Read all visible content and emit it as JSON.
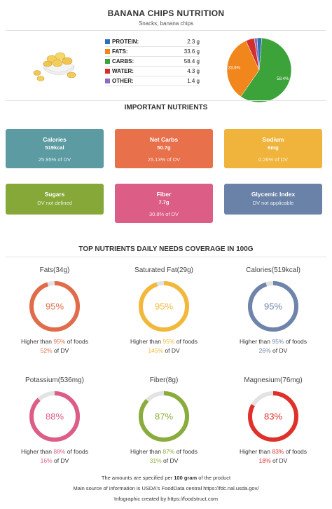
{
  "header": {
    "title": "BANANA CHIPS NUTRITION",
    "subtitle": "Snacks, banana chips"
  },
  "macros": [
    {
      "label": "PROTEIN:",
      "value": "2.3 g",
      "color": "#2e6fb5"
    },
    {
      "label": "FATS:",
      "value": "33.6 g",
      "color": "#f0861c"
    },
    {
      "label": "CARBS:",
      "value": "58.4 g",
      "color": "#3ca33a"
    },
    {
      "label": "WATER:",
      "value": "4.3 g",
      "color": "#d32f2f"
    },
    {
      "label": "OTHER:",
      "value": "1.4 g",
      "color": "#8e6bbf"
    }
  ],
  "chart_data": {
    "type": "pie",
    "slices": [
      {
        "name": "PROTEIN",
        "value": 2.3,
        "color": "#2e6fb5"
      },
      {
        "name": "FATS",
        "value": 33.6,
        "color": "#f0861c"
      },
      {
        "name": "CARBS",
        "value": 58.4,
        "color": "#3ca33a"
      },
      {
        "name": "WATER",
        "value": 4.3,
        "color": "#d32f2f"
      },
      {
        "name": "OTHER",
        "value": 1.4,
        "color": "#8e6bbf"
      }
    ],
    "slice_labels": [
      "33.6%",
      "58.4%"
    ]
  },
  "important": {
    "title": "IMPORTANT NUTRIENTS",
    "cards": [
      {
        "name": "Calories",
        "value": "519kcal",
        "dv": "25.95% of DV",
        "color": "#5b9ba1"
      },
      {
        "name": "Net Carbs",
        "value": "50.7g",
        "dv": "25.13% of DV",
        "color": "#e8704a"
      },
      {
        "name": "Sodium",
        "value": "6mg",
        "dv": "0.26% of DV",
        "color": "#f0b43c"
      },
      {
        "name": "Sugars",
        "value": "",
        "dv": "DV not defined",
        "color": "#85a838"
      },
      {
        "name": "Fiber",
        "value": "7.7g",
        "dv": "30.8% of DV",
        "color": "#dc5e86"
      },
      {
        "name": "Glycemic Index",
        "value": "",
        "dv": "DV not applicable",
        "color": "#6a82a8"
      }
    ]
  },
  "coverage": {
    "title": "TOP NUTRIENTS DAILY NEEDS COVERAGE IN 100G",
    "higher_prefix": "Higher than ",
    "higher_suffix": " of foods",
    "dv_suffix": " of DV",
    "items": [
      {
        "name": "Fats(34g)",
        "percent": 95,
        "percent_label": "95%",
        "higher": "95%",
        "dv": "52%",
        "color": "#e06c4a"
      },
      {
        "name": "Saturated Fat(29g)",
        "percent": 95,
        "percent_label": "95%",
        "higher": "95%",
        "dv": "145%",
        "color": "#f2b83a"
      },
      {
        "name": "Calories(519kcal)",
        "percent": 95,
        "percent_label": "95%",
        "higher": "95%",
        "dv": "26%",
        "color": "#6e84aa"
      },
      {
        "name": "Potassium(536mg)",
        "percent": 88,
        "percent_label": "88%",
        "higher": "88%",
        "dv": "16%",
        "color": "#dc5e86"
      },
      {
        "name": "Fiber(8g)",
        "percent": 87,
        "percent_label": "87%",
        "higher": "87%",
        "dv": "31%",
        "color": "#8aac3c"
      },
      {
        "name": "Magnesium(76mg)",
        "percent": 83,
        "percent_label": "83%",
        "higher": "83%",
        "dv": "18%",
        "color": "#e0302a"
      }
    ]
  },
  "footer": {
    "line1_pre": "The amounts are specified per ",
    "line1_bold": "100 gram",
    "line1_post": " of the product",
    "line2": "Main source of information is USDA's FoodData central https://fdc.nal.usda.gov/",
    "line3": "Infographic created by https://foodstruct.com"
  }
}
